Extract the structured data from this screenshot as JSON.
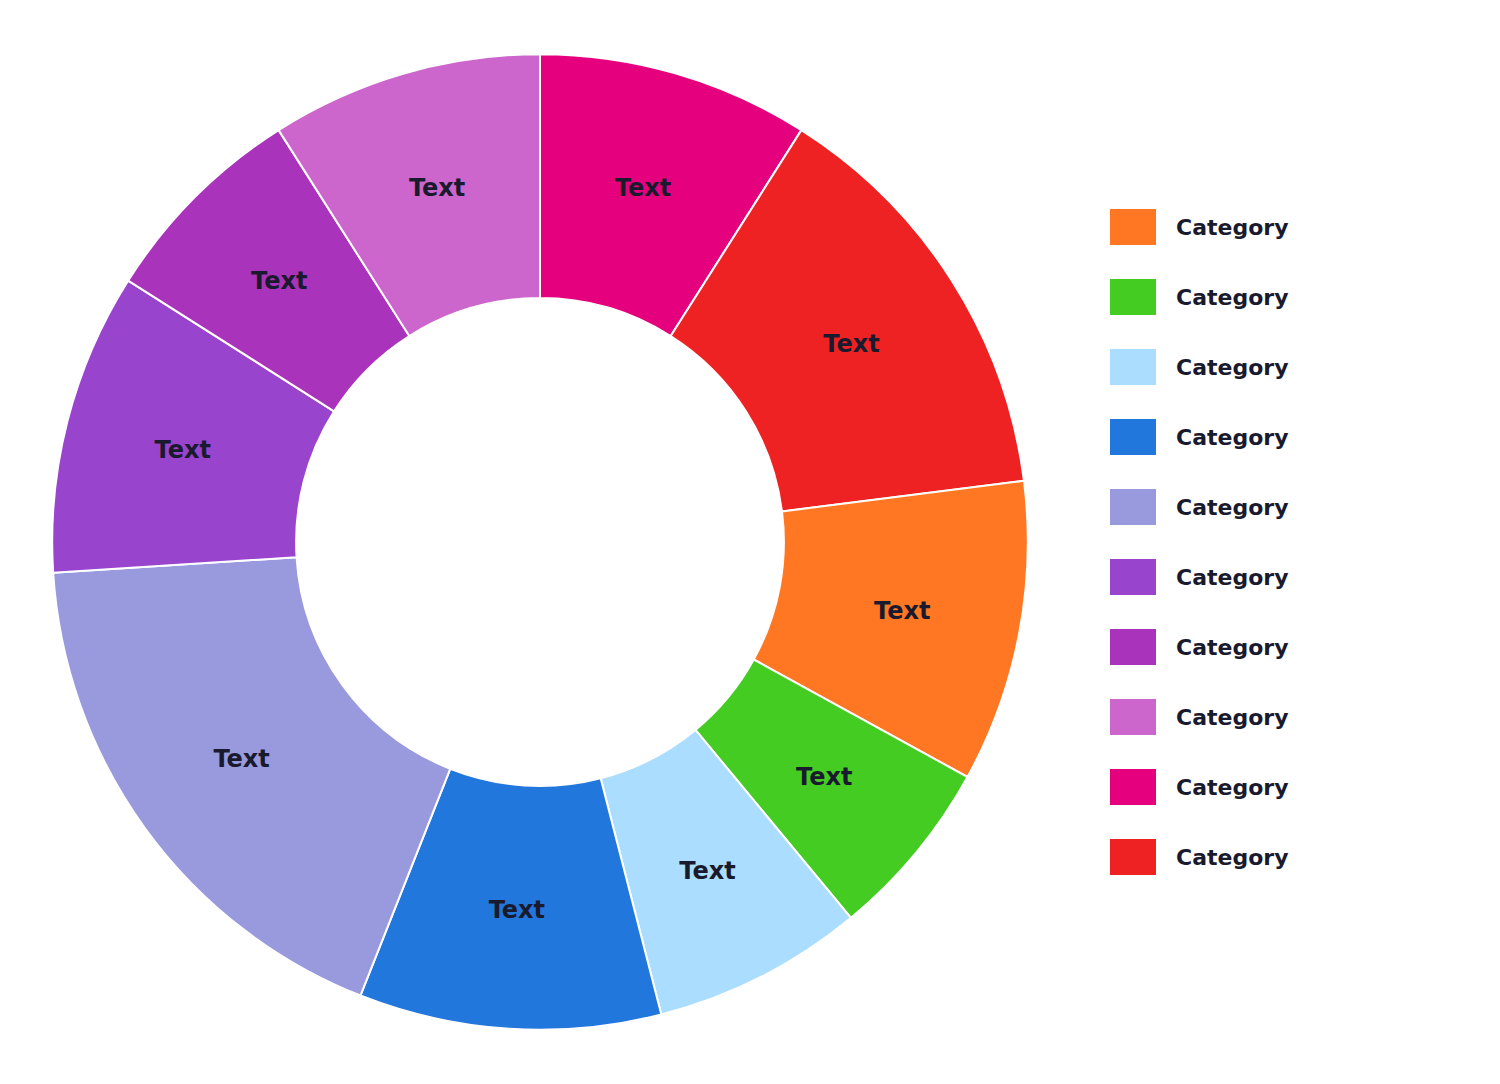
{
  "chart_data": {
    "type": "donut",
    "categories": [
      "Text",
      "Text",
      "Text",
      "Text",
      "Text",
      "Text",
      "Text",
      "Text",
      "Text",
      "Text"
    ],
    "values": [
      9,
      14,
      10,
      6,
      7,
      10,
      18,
      10,
      7,
      9
    ],
    "colors": [
      "#E5007E",
      "#EE2222",
      "#FF7722",
      "#44CC22",
      "#AADDFF",
      "#2277DD",
      "#9999DD",
      "#9944CC",
      "#AA33BB",
      "#CC66CC"
    ],
    "legend": "right",
    "legend_entries": [
      {
        "color": "#FF7722",
        "label": "Category"
      },
      {
        "color": "#44CC22",
        "label": "Category"
      },
      {
        "color": "#AADDFF",
        "label": "Category"
      },
      {
        "color": "#2277DD",
        "label": "Category"
      },
      {
        "color": "#9999DD",
        "label": "Category"
      },
      {
        "color": "#9944CC",
        "label": "Category"
      },
      {
        "color": "#AA33BB",
        "label": "Category"
      },
      {
        "color": "#CC66CC",
        "label": "Category"
      },
      {
        "color": "#E5007E",
        "label": "Category"
      },
      {
        "color": "#EE2222",
        "label": "Category"
      }
    ]
  }
}
